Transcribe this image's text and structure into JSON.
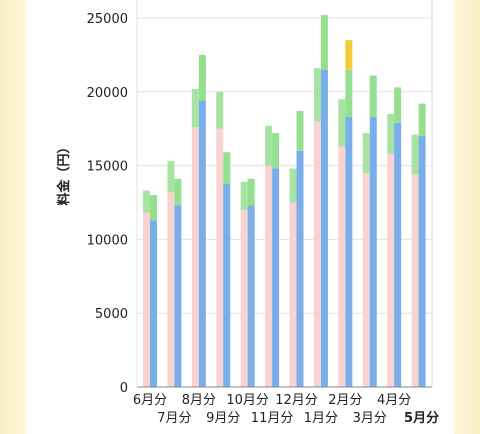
{
  "chart_data": {
    "type": "bar",
    "stacked": true,
    "ylabel": "料金（円）",
    "ylim": [
      0,
      25000
    ],
    "yticks": [
      0,
      5000,
      10000,
      15000,
      20000,
      25000
    ],
    "grid": true,
    "legend": "none",
    "categories": [
      "6月分",
      "7月分",
      "8月分",
      "9月分",
      "10月分",
      "11月分",
      "12月分",
      "1月分",
      "2月分",
      "3月分",
      "4月分",
      "5月分"
    ],
    "highlight_category": "5月分",
    "series_colors": {
      "prev_base": "#f7d4d2",
      "prev_extra": "#a8e3a2",
      "curr_base": "#79aeea",
      "curr_extra": "#95df91",
      "curr_extra_2": "#f2cc35"
    },
    "previous_year": {
      "base": [
        11800,
        13200,
        17600,
        17500,
        12000,
        15000,
        12500,
        18000,
        16300,
        14500,
        15800,
        14400
      ],
      "extra": [
        1500,
        2100,
        2600,
        2500,
        1900,
        2700,
        2300,
        3600,
        3200,
        2700,
        2700,
        2700
      ]
    },
    "current_year": {
      "base": [
        11300,
        12300,
        19400,
        13800,
        12300,
        14800,
        16000,
        21500,
        18300,
        18300,
        17900,
        17000
      ],
      "extra": [
        1700,
        1800,
        3100,
        2100,
        1800,
        2400,
        2700,
        3700,
        3200,
        2800,
        2400,
        2200
      ],
      "extra_2": [
        0,
        0,
        0,
        0,
        0,
        0,
        0,
        0,
        2000,
        0,
        0,
        0
      ]
    }
  }
}
